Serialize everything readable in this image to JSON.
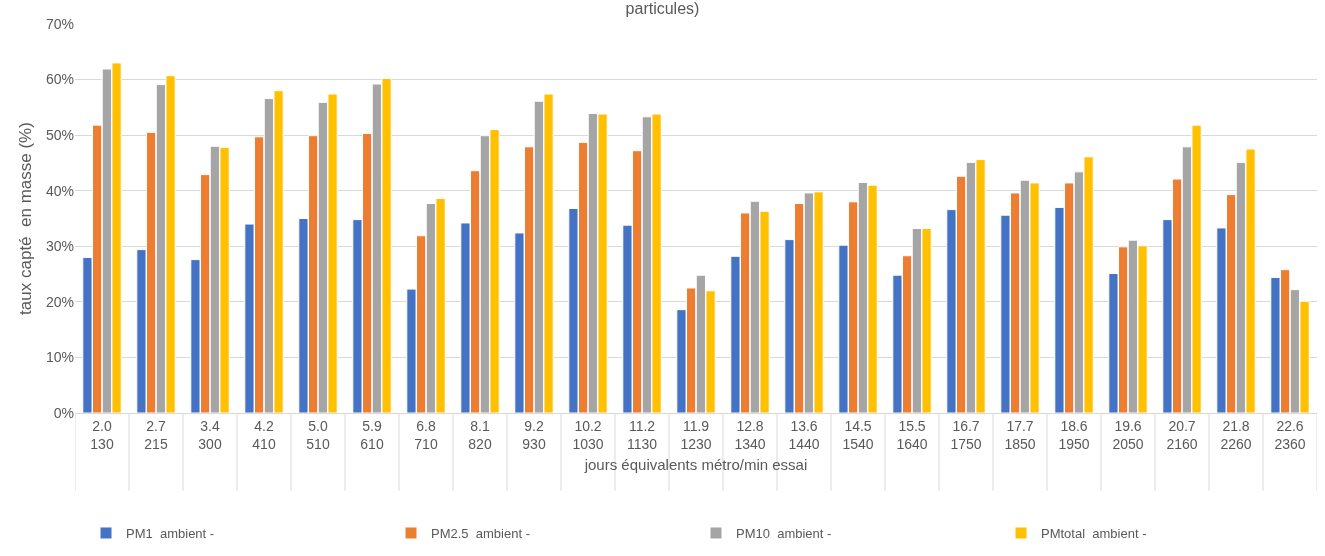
{
  "chart_data": {
    "type": "bar",
    "title": "particules)",
    "xlabel": "jours équivalents métro/min essai",
    "ylabel": "taux capté  en masse (%)",
    "categories": [
      "2.0\n130",
      "2.7\n215",
      "3.4\n300",
      "4.2\n410",
      "5.0\n510",
      "5.9\n610",
      "6.8\n710",
      "8.1\n820",
      "9.2\n930",
      "10.2\n1030",
      "11.2\n1130",
      "11.9\n1230",
      "12.8\n1340",
      "13.6\n1440",
      "14.5\n1540",
      "15.5\n1640",
      "16.7\n1750",
      "17.7\n1850",
      "18.6\n1950",
      "19.6\n2050",
      "20.7\n2160",
      "21.8\n2260",
      "22.6\n2360"
    ],
    "series": [
      {
        "name": "PM1  ambient -",
        "color": "#4472c4",
        "values": [
          28,
          29.4,
          27.6,
          34,
          35,
          34.8,
          22.3,
          34.2,
          32.4,
          36.8,
          33.8,
          18.6,
          28.2,
          31.2,
          30.2,
          24.8,
          36.6,
          35.6,
          37,
          25.1,
          34.8,
          33.3,
          24.4
        ]
      },
      {
        "name": "PM2.5  ambient -",
        "color": "#ed7d31",
        "values": [
          51.8,
          50.5,
          42.9,
          49.7,
          49.9,
          50.3,
          31.9,
          43.6,
          47.9,
          48.7,
          47.2,
          22.5,
          36,
          37.7,
          38,
          28.3,
          42.6,
          39.6,
          41.4,
          29.9,
          42.1,
          39.3,
          25.8
        ]
      },
      {
        "name": "PM10  ambient -",
        "color": "#a5a5a5",
        "values": [
          61.9,
          59.1,
          48,
          56.6,
          55.9,
          59.2,
          37.7,
          49.9,
          56.1,
          53.9,
          53.3,
          24.8,
          38.1,
          39.6,
          41.5,
          33.2,
          45.1,
          41.9,
          43.4,
          31.1,
          47.9,
          45.1,
          22.2
        ]
      },
      {
        "name": "PMtotal  ambient -",
        "color": "#ffc000",
        "values": [
          63,
          60.7,
          47.8,
          58,
          57.4,
          60.2,
          38.6,
          51,
          57.4,
          53.8,
          53.8,
          22,
          36.3,
          39.8,
          41,
          33.2,
          45.6,
          41.4,
          46.1,
          30.1,
          51.8,
          47.5,
          20.1
        ]
      }
    ],
    "ylim": [
      0,
      70
    ],
    "yticks": [
      {
        "value": 0,
        "label": "0%"
      },
      {
        "value": 10,
        "label": "10%"
      },
      {
        "value": 20,
        "label": "20%"
      },
      {
        "value": 30,
        "label": "30%"
      },
      {
        "value": 40,
        "label": "40%"
      },
      {
        "value": 50,
        "label": "50%"
      },
      {
        "value": 60,
        "label": "60%"
      },
      {
        "value": 70,
        "label": "70%"
      }
    ],
    "grid": "y",
    "legend": "bottom"
  }
}
